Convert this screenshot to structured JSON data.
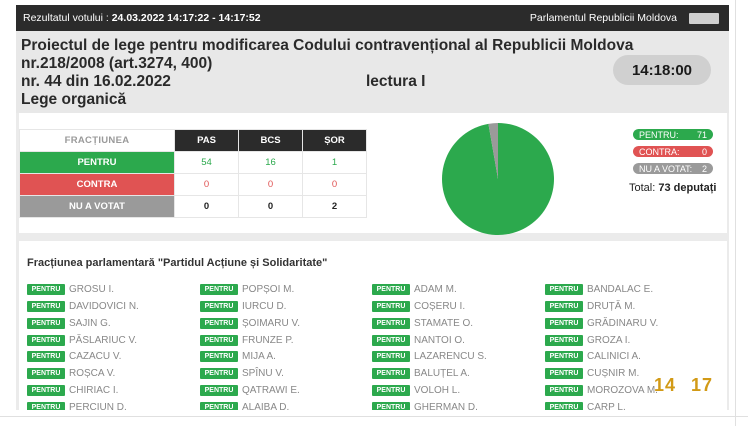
{
  "topbar": {
    "label": "Rezultatul votului :",
    "datetime": "24.03.2022 14:17:22 - 14:17:52",
    "parliament": "Parlamentul Republicii Moldova"
  },
  "header": {
    "line1": "Proiectul de lege pentru modificarea Codului contravențional al Republicii Moldova",
    "line2": "nr.218/2008 (art.3274, 400)",
    "line3": "nr. 44 din 16.02.2022",
    "line4": "Lege organică",
    "reading": "lectura I",
    "clock": "14:18:00"
  },
  "table": {
    "header_label": "FRACȚIUNEA",
    "parties": [
      "PAS",
      "BCS",
      "ȘOR"
    ],
    "rows": [
      {
        "label": "PENTRU",
        "values": [
          "54",
          "16",
          "1"
        ]
      },
      {
        "label": "CONTRA",
        "values": [
          "0",
          "0",
          "0"
        ]
      },
      {
        "label": "NU A VOTAT",
        "values": [
          "0",
          "0",
          "2"
        ]
      }
    ]
  },
  "summary": {
    "pentru_label": "PENTRU:",
    "pentru_value": "71",
    "contra_label": "CONTRA:",
    "contra_value": "0",
    "nuavotat_label": "NU A VOTAT:",
    "nuavotat_value": "2",
    "total_label": "Total:",
    "total_value": "73 deputați"
  },
  "pie": {
    "pentru": 71,
    "contra": 0,
    "nuavotat": 2
  },
  "colors": {
    "pentru": "#2ca94d",
    "contra": "#e05353",
    "nuavotat": "#9a9a9a"
  },
  "faction": {
    "title": "Fracțiunea parlamentară \"Partidul Acțiune și Solidaritate\"",
    "badge": "PENTRU",
    "columns": [
      [
        "GROSU I.",
        "DAVIDOVICI N.",
        "SAJIN G.",
        "PĂSLARIUC V.",
        "CAZACU V.",
        "ROȘCA V.",
        "CHIRIAC I.",
        "PERCIUN D."
      ],
      [
        "POPȘOI M.",
        "IURCU D.",
        "ȘOIMARU V.",
        "FRUNZE P.",
        "MIJA A.",
        "SPÎNU V.",
        "QATRAWI E.",
        "ALAIBA D."
      ],
      [
        "ADAM M.",
        "COȘERU I.",
        "STAMATE O.",
        "NANTOI O.",
        "LAZARENCU S.",
        "BALUȚEL A.",
        "VOLOH L.",
        "GHERMAN D."
      ],
      [
        "BANDALAC E.",
        "DRUȚĂ M.",
        "GRĂDINARU V.",
        "GROZA I.",
        "CALINICI A.",
        "CUȘNIR M.",
        "MOROZOVA M.",
        "CARP L."
      ]
    ]
  },
  "score": {
    "a": "14",
    "b": "17"
  }
}
